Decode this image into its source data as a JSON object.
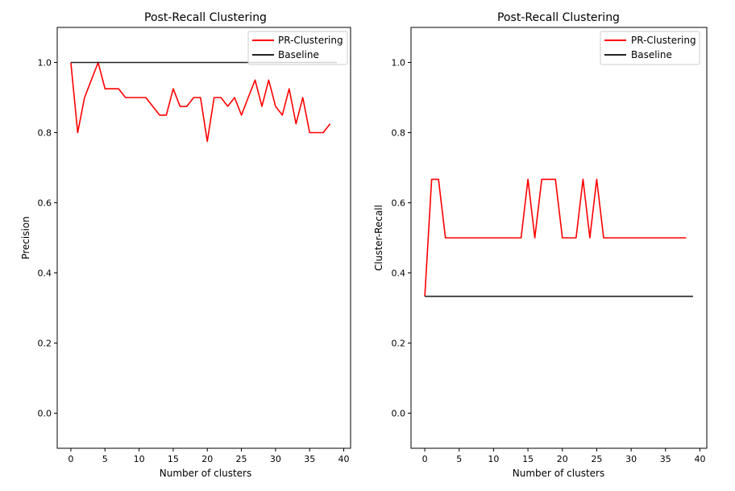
{
  "chart_data": [
    {
      "type": "line",
      "title": "Post-Recall Clustering",
      "xlabel": "Number of clusters",
      "ylabel": "Precision",
      "xlim": [
        -2,
        41
      ],
      "ylim": [
        -0.1,
        1.1
      ],
      "xticks": [
        0,
        5,
        10,
        15,
        20,
        25,
        30,
        35,
        40
      ],
      "yticks": [
        0.0,
        0.2,
        0.4,
        0.6,
        0.8,
        1.0
      ],
      "xticklabels": [
        "0",
        "5",
        "10",
        "15",
        "20",
        "25",
        "30",
        "35",
        "40"
      ],
      "yticklabels": [
        "0.0",
        "0.2",
        "0.4",
        "0.6",
        "0.8",
        "1.0"
      ],
      "legend_position": "upper right",
      "grid": false,
      "series": [
        {
          "name": "PR-Clustering",
          "color": "#ff0000",
          "x": [
            0,
            1,
            2,
            3,
            4,
            5,
            6,
            7,
            8,
            9,
            10,
            11,
            12,
            13,
            14,
            15,
            16,
            17,
            18,
            19,
            20,
            21,
            22,
            23,
            24,
            25,
            26,
            27,
            28,
            29,
            30,
            31,
            32,
            33,
            34,
            35,
            36,
            37,
            38
          ],
          "y": [
            1.0,
            0.8,
            0.9,
            0.95,
            1.0,
            0.925,
            0.925,
            0.925,
            0.9,
            0.9,
            0.9,
            0.9,
            0.875,
            0.85,
            0.85,
            0.925,
            0.875,
            0.875,
            0.9,
            0.9,
            0.775,
            0.9,
            0.9,
            0.875,
            0.9,
            0.85,
            0.9,
            0.95,
            0.875,
            0.95,
            0.875,
            0.85,
            0.925,
            0.825,
            0.9,
            0.8,
            0.8,
            0.8,
            0.825
          ]
        },
        {
          "name": "Baseline",
          "color": "#222222",
          "x": [
            0,
            39
          ],
          "y": [
            1.0,
            1.0
          ]
        }
      ]
    },
    {
      "type": "line",
      "title": "Post-Recall Clustering",
      "xlabel": "Number of clusters",
      "ylabel": "Cluster-Recall",
      "xlim": [
        -2,
        41
      ],
      "ylim": [
        -0.1,
        1.1
      ],
      "xticks": [
        0,
        5,
        10,
        15,
        20,
        25,
        30,
        35,
        40
      ],
      "yticks": [
        0.0,
        0.2,
        0.4,
        0.6,
        0.8,
        1.0
      ],
      "xticklabels": [
        "0",
        "5",
        "10",
        "15",
        "20",
        "25",
        "30",
        "35",
        "40"
      ],
      "yticklabels": [
        "0.0",
        "0.2",
        "0.4",
        "0.6",
        "0.8",
        "1.0"
      ],
      "legend_position": "upper right",
      "grid": false,
      "series": [
        {
          "name": "PR-Clustering",
          "color": "#ff0000",
          "x": [
            0,
            1,
            2,
            3,
            4,
            5,
            6,
            7,
            8,
            9,
            10,
            11,
            12,
            13,
            14,
            15,
            16,
            17,
            18,
            19,
            20,
            21,
            22,
            23,
            24,
            25,
            26,
            27,
            28,
            29,
            30,
            31,
            32,
            33,
            34,
            35,
            36,
            37,
            38
          ],
          "y": [
            0.333,
            0.667,
            0.667,
            0.5,
            0.5,
            0.5,
            0.5,
            0.5,
            0.5,
            0.5,
            0.5,
            0.5,
            0.5,
            0.5,
            0.5,
            0.667,
            0.5,
            0.667,
            0.667,
            0.667,
            0.5,
            0.5,
            0.5,
            0.667,
            0.5,
            0.667,
            0.5,
            0.5,
            0.5,
            0.5,
            0.5,
            0.5,
            0.5,
            0.5,
            0.5,
            0.5,
            0.5,
            0.5,
            0.5
          ]
        },
        {
          "name": "Baseline",
          "color": "#222222",
          "x": [
            0,
            39
          ],
          "y": [
            0.333,
            0.333
          ]
        }
      ]
    }
  ]
}
